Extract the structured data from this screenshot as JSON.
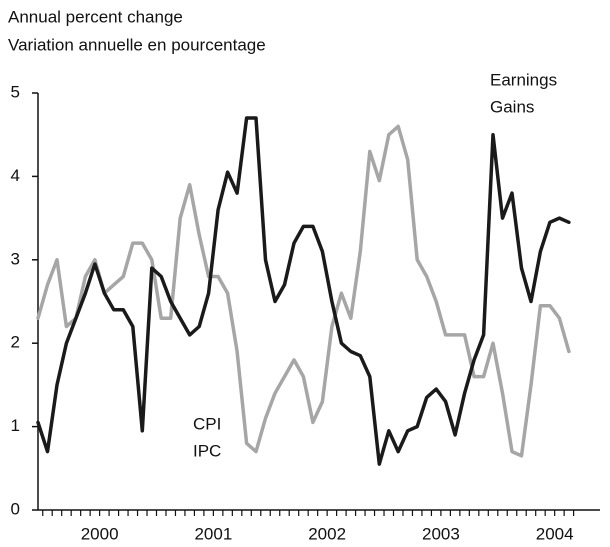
{
  "chart_data": {
    "type": "line",
    "y_label_lines": [
      "Annual percent change",
      "Variation annuelle en pourcentage"
    ],
    "categories": [
      null,
      null,
      null,
      null,
      null,
      null,
      "2000",
      null,
      null,
      null,
      null,
      null,
      null,
      null,
      null,
      null,
      null,
      null,
      "2001",
      null,
      null,
      null,
      null,
      null,
      null,
      null,
      null,
      null,
      null,
      null,
      "2002",
      null,
      null,
      null,
      null,
      null,
      null,
      null,
      null,
      null,
      null,
      null,
      "2003",
      null,
      null,
      null,
      null,
      null,
      null,
      null,
      null,
      null,
      null,
      null,
      "2004",
      null,
      null
    ],
    "series": [
      {
        "name": "CPI",
        "name_fr": "IPC",
        "color": "#a6a6a6",
        "values": [
          2.3,
          2.7,
          3.0,
          2.2,
          2.3,
          2.8,
          3.0,
          2.6,
          2.7,
          2.8,
          3.2,
          3.2,
          3.0,
          2.3,
          2.3,
          3.5,
          3.9,
          3.3,
          2.8,
          2.8,
          2.6,
          1.9,
          0.8,
          0.7,
          1.1,
          1.4,
          1.6,
          1.8,
          1.6,
          1.05,
          1.3,
          2.2,
          2.6,
          2.3,
          3.1,
          4.3,
          3.95,
          4.5,
          4.6,
          4.2,
          3.0,
          2.8,
          2.5,
          2.1,
          2.1,
          2.1,
          1.6,
          1.6,
          2.0,
          1.4,
          0.7,
          0.65,
          1.5,
          2.45,
          2.45,
          2.3,
          1.9
        ]
      },
      {
        "name": "Earnings",
        "name_fr": "Gains",
        "color": "#1a1a1a",
        "values": [
          1.05,
          0.7,
          1.5,
          2.0,
          2.3,
          2.6,
          2.95,
          2.6,
          2.4,
          2.4,
          2.2,
          0.95,
          2.9,
          2.8,
          2.5,
          2.3,
          2.1,
          2.2,
          2.6,
          3.6,
          4.05,
          3.8,
          4.7,
          4.7,
          3.0,
          2.5,
          2.7,
          3.2,
          3.4,
          3.4,
          3.1,
          2.5,
          2.0,
          1.9,
          1.85,
          1.6,
          0.55,
          0.95,
          0.7,
          0.95,
          1.0,
          1.35,
          1.45,
          1.3,
          0.9,
          1.4,
          1.8,
          2.1,
          4.5,
          3.5,
          3.8,
          2.9,
          2.5,
          3.1,
          3.45,
          3.5,
          3.45
        ]
      }
    ],
    "ylim": [
      0,
      5
    ],
    "yticks": [
      0,
      1,
      2,
      3,
      4,
      5
    ],
    "grid": false
  }
}
